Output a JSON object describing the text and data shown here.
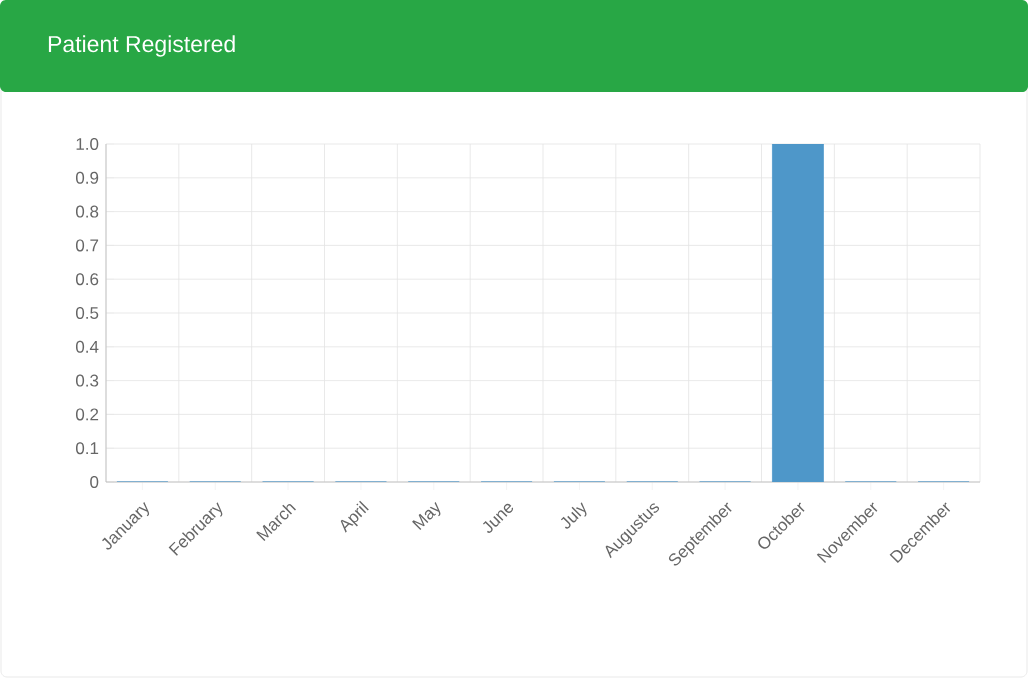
{
  "chart_data": {
    "type": "bar",
    "title": "Patient Registered",
    "categories": [
      "January",
      "February",
      "March",
      "April",
      "May",
      "June",
      "July",
      "Augustus",
      "September",
      "October",
      "November",
      "December"
    ],
    "values": [
      0,
      0,
      0,
      0,
      0,
      0,
      0,
      0,
      0,
      1,
      0,
      0
    ],
    "color": "#4e97c9",
    "ylim": [
      0,
      1
    ],
    "yticks": [
      0,
      0.1,
      0.2,
      0.3,
      0.4,
      0.5,
      0.6,
      0.7,
      0.8,
      0.9,
      {
        "value": 1,
        "label": "1.0"
      }
    ],
    "grid": true
  }
}
